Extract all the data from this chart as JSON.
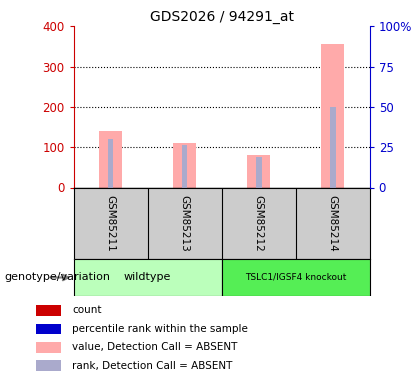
{
  "title": "GDS2026 / 94291_at",
  "categories": [
    "GSM85211",
    "GSM85213",
    "GSM85212",
    "GSM85214"
  ],
  "value_bars": [
    140,
    110,
    80,
    355
  ],
  "rank_bars": [
    120,
    105,
    75,
    200
  ],
  "left_ylim": [
    0,
    400
  ],
  "right_ylim": [
    0,
    100
  ],
  "left_yticks": [
    0,
    100,
    200,
    300,
    400
  ],
  "right_yticks": [
    0,
    25,
    50,
    75,
    100
  ],
  "right_yticklabels": [
    "0",
    "25",
    "50",
    "75",
    "100%"
  ],
  "left_tick_color": "#cc0000",
  "right_tick_color": "#0000cc",
  "bar_value_color": "#ffaaaa",
  "bar_rank_color": "#aaaacc",
  "background_color": "#ffffff",
  "plot_bg": "#ffffff",
  "group1_label": "wildtype",
  "group2_label": "TSLC1/IGSF4 knockout",
  "group1_color": "#bbffbb",
  "group2_color": "#55ee55",
  "label_text": "genotype/variation",
  "legend_items": [
    {
      "color": "#cc0000",
      "label": "count"
    },
    {
      "color": "#0000cc",
      "label": "percentile rank within the sample"
    },
    {
      "color": "#ffaaaa",
      "label": "value, Detection Call = ABSENT"
    },
    {
      "color": "#aaaacc",
      "label": "rank, Detection Call = ABSENT"
    }
  ],
  "value_bar_width": 0.3,
  "rank_bar_width": 0.08,
  "sample_box_color": "#cccccc",
  "title_fontsize": 10,
  "tick_fontsize": 8.5,
  "legend_fontsize": 7.5,
  "label_fontsize": 8,
  "sample_fontsize": 7.5,
  "group_fontsize": 8
}
